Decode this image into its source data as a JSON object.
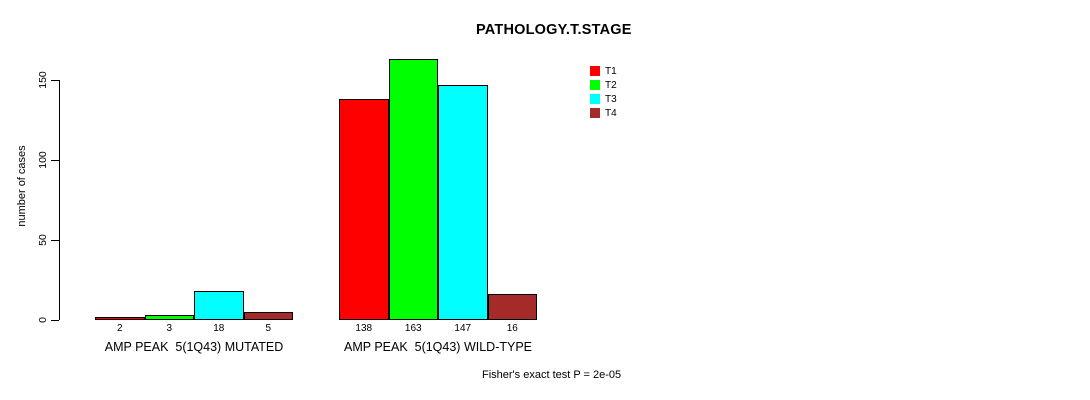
{
  "chart_data": {
    "type": "bar",
    "title": "PATHOLOGY.T.STAGE",
    "ylabel": "number of cases",
    "xlabel": "",
    "ylim": [
      0,
      150
    ],
    "yticks": [
      0,
      50,
      100,
      150
    ],
    "grid": false,
    "legend_position": "top-right",
    "categories": [
      "AMP PEAK  5(1Q43) MUTATED",
      "AMP PEAK  5(1Q43) WILD-TYPE"
    ],
    "series": [
      {
        "name": "T1",
        "color": "#FF0000",
        "values": [
          2,
          138
        ]
      },
      {
        "name": "T2",
        "color": "#00FF00",
        "values": [
          3,
          163
        ]
      },
      {
        "name": "T3",
        "color": "#00FFFF",
        "values": [
          18,
          147
        ]
      },
      {
        "name": "T4",
        "color": "#A52A2A",
        "values": [
          5,
          16
        ]
      }
    ],
    "bar_value_labels": [
      [
        2,
        3,
        18,
        5
      ],
      [
        138,
        163,
        147,
        16
      ]
    ],
    "annotation": "Fisher's exact test P = 2e-05",
    "colors": {
      "bar_border": "#000000",
      "axis": "#000000",
      "text": "#000000",
      "background": "#FFFFFF"
    }
  }
}
